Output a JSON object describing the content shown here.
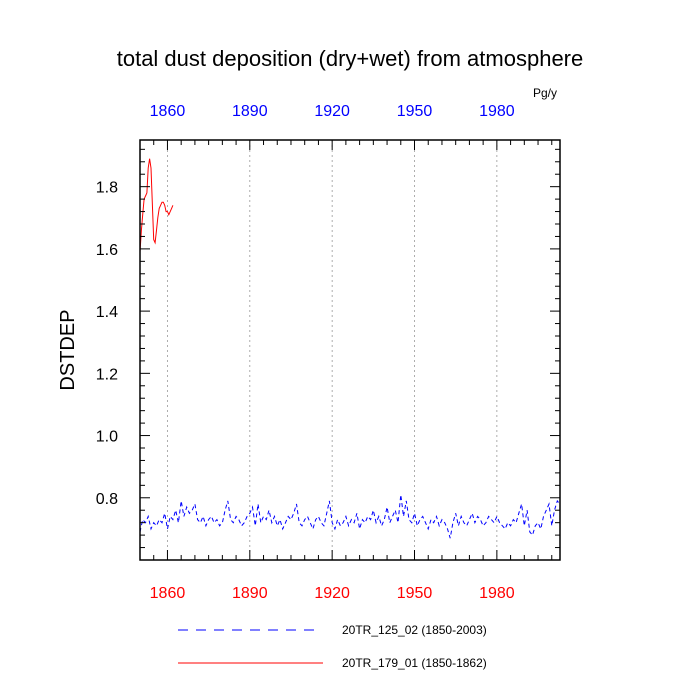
{
  "chart_data": {
    "type": "line",
    "title": "total dust deposition (dry+wet) from atmosphere",
    "units": "Pg/y",
    "ylabel": "DSTDEP",
    "xlabel": "",
    "xlim": [
      1850,
      2003
    ],
    "ylim": [
      0.6,
      1.95
    ],
    "x_ticks": [
      1860,
      1890,
      1920,
      1950,
      1980
    ],
    "x_tick_labels": [
      "1860",
      "1890",
      "1920",
      "1950",
      "1980"
    ],
    "y_ticks": [
      0.8,
      1.0,
      1.2,
      1.4,
      1.6,
      1.8
    ],
    "y_tick_labels": [
      "0.8",
      "1.0",
      "1.2",
      "1.4",
      "1.6",
      "1.8"
    ],
    "grid": "vertical dotted at x ticks",
    "legend_position": "bottom",
    "series": [
      {
        "name": "20TR_125_02 (1850-2003)",
        "color": "#0000ff",
        "dash": "dashed",
        "x": [
          1850,
          1851,
          1852,
          1853,
          1854,
          1855,
          1856,
          1857,
          1858,
          1859,
          1860,
          1861,
          1862,
          1863,
          1864,
          1865,
          1866,
          1867,
          1868,
          1869,
          1870,
          1871,
          1872,
          1873,
          1874,
          1875,
          1876,
          1877,
          1878,
          1879,
          1880,
          1881,
          1882,
          1883,
          1884,
          1885,
          1886,
          1887,
          1888,
          1889,
          1890,
          1891,
          1892,
          1893,
          1894,
          1895,
          1896,
          1897,
          1898,
          1899,
          1900,
          1901,
          1902,
          1903,
          1904,
          1905,
          1906,
          1907,
          1908,
          1909,
          1910,
          1911,
          1912,
          1913,
          1914,
          1915,
          1916,
          1917,
          1918,
          1919,
          1920,
          1921,
          1922,
          1923,
          1924,
          1925,
          1926,
          1927,
          1928,
          1929,
          1930,
          1931,
          1932,
          1933,
          1934,
          1935,
          1936,
          1937,
          1938,
          1939,
          1940,
          1941,
          1942,
          1943,
          1944,
          1945,
          1946,
          1947,
          1948,
          1949,
          1950,
          1951,
          1952,
          1953,
          1954,
          1955,
          1956,
          1957,
          1958,
          1959,
          1960,
          1961,
          1962,
          1963,
          1964,
          1965,
          1966,
          1967,
          1968,
          1969,
          1970,
          1971,
          1972,
          1973,
          1974,
          1975,
          1976,
          1977,
          1978,
          1979,
          1980,
          1981,
          1982,
          1983,
          1984,
          1985,
          1986,
          1987,
          1988,
          1989,
          1990,
          1991,
          1992,
          1993,
          1994,
          1995,
          1996,
          1997,
          1998,
          1999,
          2000,
          2001,
          2002,
          2003
        ],
        "values": [
          0.69,
          0.73,
          0.72,
          0.74,
          0.7,
          0.72,
          0.71,
          0.73,
          0.72,
          0.75,
          0.7,
          0.74,
          0.73,
          0.76,
          0.72,
          0.79,
          0.74,
          0.77,
          0.75,
          0.76,
          0.78,
          0.73,
          0.72,
          0.74,
          0.71,
          0.73,
          0.74,
          0.72,
          0.73,
          0.71,
          0.72,
          0.76,
          0.79,
          0.73,
          0.72,
          0.74,
          0.73,
          0.71,
          0.72,
          0.74,
          0.75,
          0.77,
          0.71,
          0.78,
          0.72,
          0.74,
          0.73,
          0.76,
          0.72,
          0.74,
          0.71,
          0.73,
          0.7,
          0.72,
          0.74,
          0.73,
          0.75,
          0.78,
          0.72,
          0.71,
          0.73,
          0.74,
          0.72,
          0.7,
          0.73,
          0.74,
          0.72,
          0.71,
          0.75,
          0.79,
          0.72,
          0.7,
          0.73,
          0.71,
          0.72,
          0.74,
          0.71,
          0.73,
          0.72,
          0.75,
          0.7,
          0.73,
          0.72,
          0.74,
          0.73,
          0.76,
          0.72,
          0.74,
          0.71,
          0.73,
          0.77,
          0.72,
          0.74,
          0.76,
          0.72,
          0.81,
          0.74,
          0.79,
          0.73,
          0.72,
          0.75,
          0.71,
          0.73,
          0.74,
          0.72,
          0.7,
          0.73,
          0.72,
          0.74,
          0.71,
          0.73,
          0.72,
          0.7,
          0.67,
          0.72,
          0.75,
          0.71,
          0.74,
          0.72,
          0.71,
          0.73,
          0.75,
          0.72,
          0.74,
          0.73,
          0.71,
          0.72,
          0.74,
          0.73,
          0.72,
          0.74,
          0.72,
          0.71,
          0.7,
          0.72,
          0.71,
          0.73,
          0.72,
          0.75,
          0.78,
          0.71,
          0.76,
          0.69,
          0.68,
          0.71,
          0.72,
          0.7,
          0.74,
          0.76,
          0.78,
          0.71,
          0.76,
          0.79,
          0.78
        ]
      },
      {
        "name": "20TR_179_01 (1850-1862)",
        "color": "#ff0000",
        "dash": "solid",
        "x": [
          1850.0,
          1850.5,
          1851.0,
          1851.5,
          1852.0,
          1852.5,
          1853.0,
          1853.5,
          1854.0,
          1854.5,
          1855.0,
          1855.5,
          1856.0,
          1856.5,
          1857.0,
          1857.5,
          1858.0,
          1858.5,
          1859.0,
          1859.5,
          1860.0,
          1860.5,
          1861.0,
          1861.5,
          1862.0
        ],
        "values": [
          1.59,
          1.66,
          1.71,
          1.76,
          1.77,
          1.78,
          1.86,
          1.89,
          1.86,
          1.74,
          1.63,
          1.62,
          1.66,
          1.7,
          1.73,
          1.74,
          1.75,
          1.75,
          1.74,
          1.72,
          1.72,
          1.71,
          1.72,
          1.73,
          1.74
        ]
      }
    ]
  }
}
